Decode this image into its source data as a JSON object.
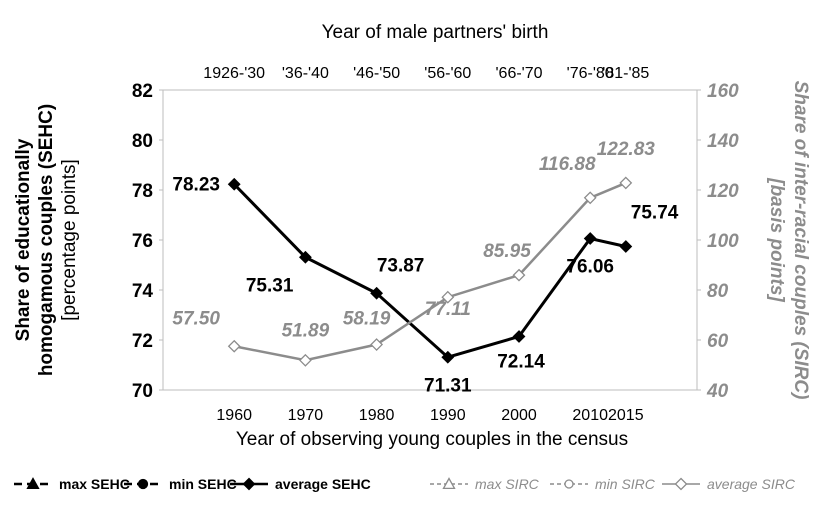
{
  "chart_data": {
    "type": "line",
    "top_axis_title": "Year of male partners' birth",
    "top_tick_labels": [
      "1926-'30",
      "'36-'40",
      "'46-'50",
      "'56-'60",
      "'66-'70",
      "'76-'80",
      "'81-'85"
    ],
    "xlabel": "Year of observing young couples in the census",
    "x": [
      1960,
      1970,
      1980,
      1990,
      2000,
      2010,
      2015
    ],
    "xlim": [
      1950,
      2025
    ],
    "ylabel_left": [
      "Share of educationally",
      "homogamous couples (SEHC)",
      "[percentage points]"
    ],
    "ylabel_right": [
      "Share of inter-racial couples (SIRC)",
      "[basis points]"
    ],
    "ylim_left": [
      70,
      82
    ],
    "yticks_left": [
      70,
      72,
      74,
      76,
      78,
      80,
      82
    ],
    "ylim_right": [
      40,
      160
    ],
    "yticks_right": [
      40,
      60,
      80,
      100,
      120,
      140,
      160
    ],
    "grid": false,
    "legend_position": "bottom",
    "colors": {
      "sehc": "#000000",
      "sirc": "#8c8c8c",
      "axis_left": "#000000",
      "axis_right": "#8c8c8c"
    },
    "series": [
      {
        "name": "max SEHC",
        "axis": "left",
        "marker": "triangle",
        "values": [
          78.23,
          75.31,
          73.87,
          71.31,
          72.14,
          76.06,
          75.74
        ],
        "visible_line": false
      },
      {
        "name": "min SEHC",
        "axis": "left",
        "marker": "circle",
        "values": [
          78.23,
          75.31,
          73.87,
          71.31,
          72.14,
          76.06,
          75.74
        ],
        "visible_line": false
      },
      {
        "name": "average SEHC",
        "axis": "left",
        "marker": "diamond",
        "values": [
          78.23,
          75.31,
          73.87,
          71.31,
          72.14,
          76.06,
          75.74
        ],
        "visible_line": true
      },
      {
        "name": "max SIRC",
        "axis": "right",
        "marker": "triangle-open",
        "values": [
          57.5,
          51.89,
          58.19,
          77.11,
          85.95,
          116.88,
          122.83
        ],
        "visible_line": false
      },
      {
        "name": "min SIRC",
        "axis": "right",
        "marker": "circle-open",
        "values": [
          57.5,
          51.89,
          58.19,
          77.11,
          85.95,
          116.88,
          122.83
        ],
        "visible_line": false
      },
      {
        "name": "average SIRC",
        "axis": "right",
        "marker": "diamond-open",
        "values": [
          57.5,
          51.89,
          58.19,
          77.11,
          85.95,
          116.88,
          122.83
        ],
        "visible_line": true
      }
    ],
    "data_labels": {
      "sehc": [
        "78.23",
        "75.31",
        "73.87",
        "71.31",
        "72.14",
        "76.06",
        "75.74"
      ],
      "sirc": [
        "57.50",
        "51.89",
        "58.19",
        "77.11",
        "85.95",
        "116.88",
        "122.83"
      ]
    }
  }
}
